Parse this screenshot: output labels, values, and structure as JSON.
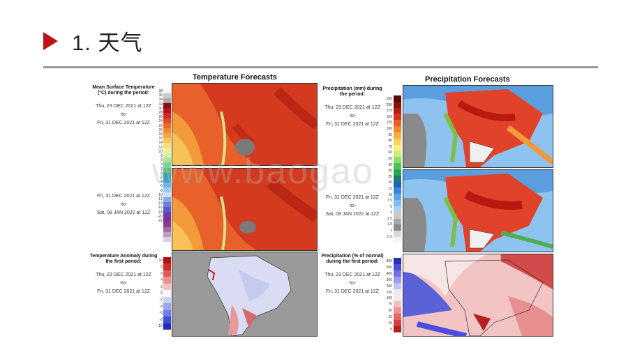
{
  "slide": {
    "title": "1. 天气"
  },
  "temperature": {
    "title": "Temperature Forecasts",
    "forecast_caption": {
      "heading": "Mean Surface Temperature (°C) during the period:",
      "period1": [
        "Thu, 23 DEC 2021 at 12Z",
        "-to-",
        "Fri, 31 DEC 2021 at 12Z"
      ],
      "period2": [
        "Fri, 31 DEC 2021 at 12Z",
        "-to-",
        "Sat, 08 JAN 2022 at 12Z"
      ]
    },
    "scale_ticks": [
      "38",
      "36",
      "34",
      "32",
      "30",
      "28",
      "26",
      "24",
      "22",
      "20",
      "18",
      "16",
      "14",
      "12",
      "10",
      "8",
      "6",
      "4",
      "2",
      "0",
      "-2",
      "-4",
      "-6",
      "-8",
      "-10",
      "-12",
      "-14",
      "-16",
      "-18",
      "-20",
      "-22"
    ],
    "anomaly_caption": {
      "heading": "Temperature Anomaly during the first period:",
      "period": [
        "Thu, 23 DEC 2021 at 12Z",
        "-to-",
        "Fri, 31 DEC 2021 at 12Z"
      ]
    },
    "anomaly_ticks": [
      "10",
      "8",
      "6",
      "4",
      "2",
      "0",
      "-2",
      "-4",
      "-6",
      "-8",
      "-10"
    ]
  },
  "precipitation": {
    "title": "Precipitation Forecasts",
    "forecast_caption": {
      "heading": "Precipitation (mm) during the period:",
      "period1": [
        "Thu, 23 DEC 2021 at 12Z",
        "-to-",
        "Fri, 31 DEC 2021 at 12Z"
      ],
      "period2": [
        "Fri, 31 DEC 2021 at 12Z",
        "-to-",
        "Sat, 08 JAN 2022 at 12Z"
      ]
    },
    "scale_ticks": [
      "250",
      "200",
      "175",
      "150",
      "125",
      "100",
      "90",
      "80",
      "70",
      "60",
      "50",
      "40",
      "30",
      "25",
      "20",
      "15",
      "10",
      "7.5",
      "5",
      "3",
      "2.5",
      "1.5",
      "1",
      "0.5"
    ],
    "anomaly_caption": {
      "heading": "Precipitation (% of normal) during the first period:",
      "period": [
        "Thu, 23 DEC 2021 at 12Z",
        "-to-",
        "Fri, 31 DEC 2021 at 12Z"
      ]
    },
    "anomaly_ticks": [
      "800",
      "600",
      "400",
      "300",
      "200",
      "150",
      "100",
      "75",
      "50",
      "25",
      "10",
      "5"
    ]
  },
  "watermark": "www.baogao",
  "colors": {
    "accent": "#c0121b",
    "rule": "#9a9a9a"
  }
}
